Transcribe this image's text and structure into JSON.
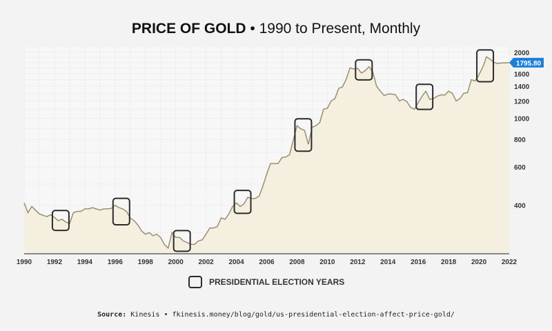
{
  "title": {
    "bold": "PRICE OF GOLD",
    "rest": " • 1990 to Present, Monthly"
  },
  "legend": {
    "label": "PRESIDENTIAL ELECTION YEARS"
  },
  "source": {
    "label": "Source:",
    "text": " Kinesis • fkinesis.money/blog/gold/us-presidential-election-affect-price-gold/"
  },
  "chart_data": {
    "type": "line",
    "yscale": "log",
    "xlim": [
      1990,
      2022
    ],
    "ylim": [
      240,
      2120
    ],
    "x_ticks": [
      "1990",
      "1992",
      "1994",
      "1996",
      "1998",
      "2000",
      "2002",
      "2004",
      "2006",
      "2008",
      "2010",
      "2012",
      "2014",
      "2016",
      "2018",
      "2020",
      "2022"
    ],
    "y_ticks": [
      "400",
      "600",
      "800",
      "1000",
      "1200",
      "1400",
      "1600",
      "2000"
    ],
    "current_price_label": "1795.80",
    "election_years": [
      1992,
      1996,
      2000,
      2004,
      2008,
      2012,
      2016,
      2020
    ],
    "grid": true,
    "colors": {
      "line": "#9a8e72",
      "fill": "#f5efdf",
      "label": "#1c7fd6",
      "box": "#2a2a2a"
    },
    "quarterly_values": [
      410,
      370,
      395,
      380,
      365,
      360,
      355,
      362,
      352,
      340,
      345,
      335,
      330,
      370,
      375,
      375,
      385,
      385,
      390,
      385,
      380,
      385,
      385,
      387,
      400,
      390,
      385,
      375,
      350,
      340,
      325,
      305,
      295,
      300,
      290,
      295,
      285,
      265,
      255,
      300,
      285,
      285,
      275,
      270,
      265,
      265,
      275,
      278,
      295,
      315,
      315,
      320,
      350,
      345,
      365,
      395,
      410,
      395,
      405,
      435,
      430,
      430,
      440,
      490,
      555,
      620,
      620,
      620,
      660,
      665,
      680,
      790,
      925,
      895,
      880,
      760,
      910,
      925,
      955,
      1100,
      1110,
      1200,
      1230,
      1370,
      1390,
      1510,
      1700,
      1680,
      1690,
      1610,
      1650,
      1720,
      1630,
      1400,
      1330,
      1270,
      1290,
      1290,
      1280,
      1200,
      1220,
      1190,
      1120,
      1100,
      1180,
      1260,
      1330,
      1220,
      1230,
      1260,
      1280,
      1275,
      1330,
      1300,
      1200,
      1230,
      1300,
      1310,
      1500,
      1480,
      1580,
      1710,
      1910,
      1860,
      1800,
      1780,
      1790,
      1790,
      1796
    ]
  }
}
